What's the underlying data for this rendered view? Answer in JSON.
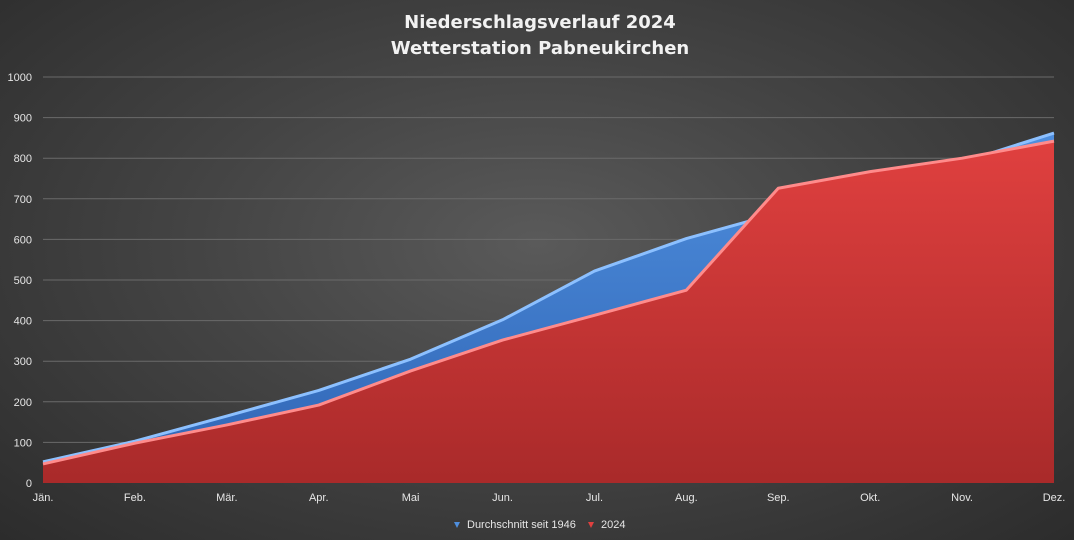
{
  "chart_data": {
    "type": "area",
    "title": "Niederschlagsverlauf 2024",
    "subtitle": "Wetterstation Pabneukirchen",
    "categories": [
      "Jän.",
      "Feb.",
      "Mär.",
      "Apr.",
      "Mai",
      "Jun.",
      "Jul.",
      "Aug.",
      "Sep.",
      "Okt.",
      "Nov.",
      "Dez."
    ],
    "series": [
      {
        "name": "Durchschnitt seit 1946",
        "color": "#4f8fde",
        "values": [
          52,
          103,
          165,
          228,
          305,
          402,
          522,
          602,
          665,
          722,
          790,
          862
        ]
      },
      {
        "name": "2024",
        "color": "#e0403f",
        "values": [
          47,
          98,
          143,
          192,
          276,
          352,
          413,
          475,
          726,
          767,
          800,
          842
        ]
      }
    ],
    "ylim": [
      0,
      1000
    ],
    "yticks": [
      "0",
      "100",
      "200",
      "300",
      "400",
      "500",
      "600",
      "700",
      "800",
      "900",
      "1000"
    ],
    "xlabel": "",
    "ylabel": "",
    "grid": true,
    "legend": "bottom"
  }
}
